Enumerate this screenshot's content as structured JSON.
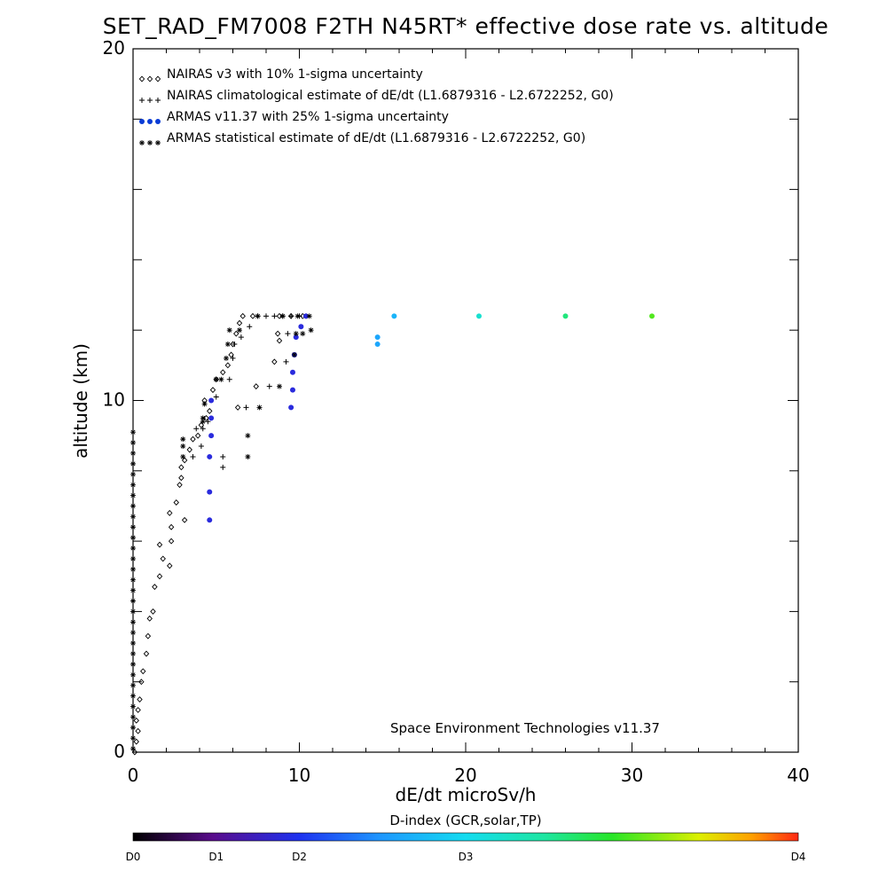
{
  "chart_data": {
    "type": "scatter",
    "title": "SET_RAD_FM7008  F2TH N45RT* effective dose rate vs. altitude",
    "xlabel": "dE/dt microSv/h",
    "ylabel": "altitude (km)",
    "xlim": [
      0,
      40
    ],
    "ylim": [
      0,
      20
    ],
    "x_ticks": [
      "0",
      "10",
      "20",
      "30",
      "40"
    ],
    "y_ticks": [
      "0",
      "10",
      "20"
    ],
    "grid": false,
    "legend_position": "top-left",
    "credit": "Space Environment Technologies v11.37",
    "colorbar": {
      "title": "D-index (GCR,solar,TP)",
      "labels": [
        {
          "text": "D0",
          "value": 0
        },
        {
          "text": "D1",
          "value": 1
        },
        {
          "text": "D2",
          "value": 2
        },
        {
          "text": "D3",
          "value": 3
        },
        {
          "text": "D4",
          "value": 4
        }
      ],
      "label_fractions": [
        0,
        0.125,
        0.25,
        0.5,
        1
      ]
    },
    "series": [
      {
        "name": "NAIRAS v3 with 10% 1-sigma uncertainty",
        "marker": "diamond",
        "color": "#000000",
        "points": [
          [
            0.1,
            0
          ],
          [
            0.2,
            0.3
          ],
          [
            0.3,
            0.6
          ],
          [
            0.2,
            0.9
          ],
          [
            0.3,
            1.2
          ],
          [
            0.4,
            1.5
          ],
          [
            0.5,
            2.0
          ],
          [
            0.6,
            2.3
          ],
          [
            0.8,
            2.8
          ],
          [
            0.9,
            3.3
          ],
          [
            1.0,
            3.8
          ],
          [
            1.2,
            4.0
          ],
          [
            1.3,
            4.7
          ],
          [
            1.6,
            5.0
          ],
          [
            1.8,
            5.5
          ],
          [
            1.6,
            5.9
          ],
          [
            2.2,
            5.3
          ],
          [
            2.3,
            6.0
          ],
          [
            2.3,
            6.4
          ],
          [
            2.2,
            6.8
          ],
          [
            3.1,
            6.6
          ],
          [
            2.6,
            7.1
          ],
          [
            2.8,
            7.6
          ],
          [
            2.9,
            7.8
          ],
          [
            2.9,
            8.1
          ],
          [
            3.1,
            8.3
          ],
          [
            3.4,
            8.6
          ],
          [
            3.6,
            8.9
          ],
          [
            3.9,
            9.0
          ],
          [
            4.1,
            9.3
          ],
          [
            4.4,
            9.5
          ],
          [
            4.6,
            9.7
          ],
          [
            4.3,
            10.0
          ],
          [
            4.8,
            10.3
          ],
          [
            5.0,
            10.6
          ],
          [
            5.4,
            10.8
          ],
          [
            5.7,
            11.0
          ],
          [
            5.9,
            11.3
          ],
          [
            6.0,
            11.6
          ],
          [
            6.2,
            11.9
          ],
          [
            6.4,
            12.2
          ],
          [
            6.6,
            12.4
          ],
          [
            7.2,
            12.4
          ],
          [
            8.8,
            12.4
          ],
          [
            9.5,
            12.4
          ],
          [
            10.2,
            12.4
          ],
          [
            6.3,
            9.8
          ],
          [
            7.4,
            10.4
          ],
          [
            8.5,
            11.1
          ],
          [
            8.8,
            11.7
          ],
          [
            8.7,
            11.9
          ]
        ]
      },
      {
        "name": "NAIRAS climatological estimate of dE/dt (L1.6879316 - L2.6722252, G0)",
        "marker": "plus",
        "color": "#000000",
        "points": [
          [
            4.2,
            9.2
          ],
          [
            4.5,
            9.4
          ],
          [
            5.0,
            10.1
          ],
          [
            5.8,
            10.6
          ],
          [
            6.0,
            11.2
          ],
          [
            6.1,
            11.6
          ],
          [
            6.5,
            11.8
          ],
          [
            7.0,
            12.1
          ],
          [
            7.5,
            12.4
          ],
          [
            8.0,
            12.4
          ],
          [
            8.5,
            12.4
          ],
          [
            9.0,
            12.4
          ],
          [
            9.5,
            12.4
          ],
          [
            10.0,
            12.4
          ],
          [
            10.4,
            12.4
          ],
          [
            5.4,
            8.1
          ],
          [
            5.4,
            8.4
          ],
          [
            6.8,
            9.8
          ],
          [
            8.2,
            10.4
          ],
          [
            9.2,
            11.1
          ],
          [
            9.3,
            11.9
          ],
          [
            3.6,
            8.4
          ],
          [
            4.1,
            8.7
          ],
          [
            3.8,
            9.2
          ]
        ]
      },
      {
        "name": "ARMAS v11.37 with 25% 1-sigma uncertainty",
        "marker": "dot",
        "color": "#0a3cd6",
        "points": [
          {
            "x": 4.6,
            "y": 6.6,
            "d": 0.9
          },
          {
            "x": 4.6,
            "y": 7.4,
            "d": 0.9
          },
          {
            "x": 4.6,
            "y": 8.4,
            "d": 0.9
          },
          {
            "x": 4.7,
            "y": 9.0,
            "d": 0.9
          },
          {
            "x": 4.7,
            "y": 9.5,
            "d": 0.9
          },
          {
            "x": 4.7,
            "y": 10.0,
            "d": 0.9
          },
          {
            "x": 9.5,
            "y": 9.8,
            "d": 0.9
          },
          {
            "x": 9.6,
            "y": 10.3,
            "d": 0.9
          },
          {
            "x": 9.6,
            "y": 10.8,
            "d": 0.9
          },
          {
            "x": 9.7,
            "y": 11.3,
            "d": 0.9
          },
          {
            "x": 9.8,
            "y": 11.8,
            "d": 0.9
          },
          {
            "x": 10.1,
            "y": 12.1,
            "d": 0.9
          },
          {
            "x": 10.4,
            "y": 12.4,
            "d": 0.9
          },
          {
            "x": 14.7,
            "y": 11.6,
            "d": 1.6
          },
          {
            "x": 14.7,
            "y": 11.8,
            "d": 1.6
          },
          {
            "x": 15.7,
            "y": 12.4,
            "d": 1.7
          },
          {
            "x": 20.8,
            "y": 12.4,
            "d": 2.2
          },
          {
            "x": 26.0,
            "y": 12.4,
            "d": 2.6
          },
          {
            "x": 31.2,
            "y": 12.4,
            "d": 3.0
          }
        ]
      },
      {
        "name": "ARMAS statistical estimate of dE/dt (L1.6879316 - L2.6722252, G0)",
        "marker": "asterisk",
        "color": "#000000",
        "points": [
          [
            0.0,
            9.1
          ],
          [
            0.0,
            8.8
          ],
          [
            0.0,
            8.5
          ],
          [
            0.0,
            8.2
          ],
          [
            0.0,
            7.9
          ],
          [
            0.0,
            7.6
          ],
          [
            0.0,
            7.3
          ],
          [
            0.0,
            7.0
          ],
          [
            0.0,
            6.7
          ],
          [
            0.0,
            6.4
          ],
          [
            0.0,
            6.1
          ],
          [
            0.0,
            5.8
          ],
          [
            0.0,
            5.5
          ],
          [
            0.0,
            5.2
          ],
          [
            0.0,
            4.9
          ],
          [
            0.0,
            4.6
          ],
          [
            0.0,
            4.3
          ],
          [
            0.0,
            4.0
          ],
          [
            0.0,
            3.7
          ],
          [
            0.0,
            3.4
          ],
          [
            0.0,
            3.1
          ],
          [
            0.0,
            2.8
          ],
          [
            0.0,
            2.5
          ],
          [
            0.0,
            2.2
          ],
          [
            0.0,
            1.9
          ],
          [
            0.0,
            1.6
          ],
          [
            0.0,
            1.3
          ],
          [
            0.0,
            1.0
          ],
          [
            0.0,
            0.7
          ],
          [
            0.0,
            0.4
          ],
          [
            0.0,
            0.1
          ],
          [
            3.0,
            8.4
          ],
          [
            3.0,
            8.7
          ],
          [
            3.0,
            8.9
          ],
          [
            4.2,
            9.4
          ],
          [
            4.2,
            9.5
          ],
          [
            4.3,
            9.9
          ],
          [
            5.0,
            10.6
          ],
          [
            5.3,
            10.6
          ],
          [
            5.6,
            11.2
          ],
          [
            5.7,
            11.6
          ],
          [
            5.8,
            12.0
          ],
          [
            6.4,
            12.0
          ],
          [
            6.9,
            8.4
          ],
          [
            6.9,
            9.0
          ],
          [
            7.6,
            9.8
          ],
          [
            8.8,
            10.4
          ],
          [
            9.7,
            11.3
          ],
          [
            9.8,
            11.9
          ],
          [
            10.2,
            11.9
          ],
          [
            10.7,
            12.0
          ],
          [
            10.6,
            12.4
          ],
          [
            7.5,
            12.4
          ],
          [
            9.0,
            12.4
          ],
          [
            9.9,
            12.4
          ]
        ]
      }
    ]
  }
}
